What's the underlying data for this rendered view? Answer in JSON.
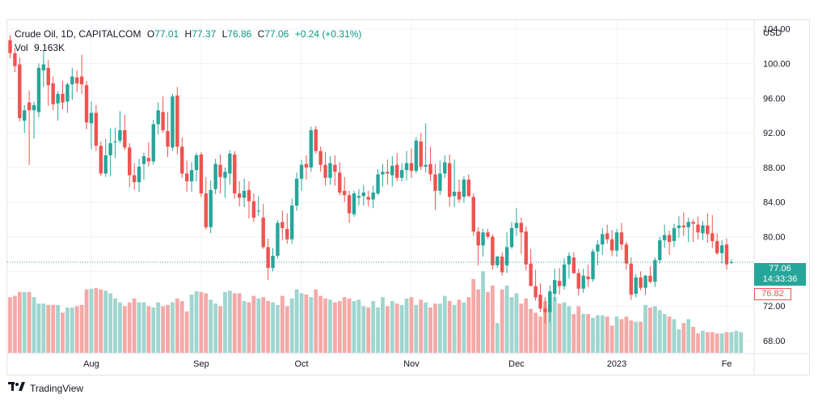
{
  "legend": {
    "symbol": "Crude Oil, 1D, CAPITALCOM",
    "open_label": "O",
    "open": "77.01",
    "high_label": "H",
    "high": "77.37",
    "low_label": "L",
    "low": "76.86",
    "close_label": "C",
    "close": "77.06",
    "change": "+0.24 (+0.31%)",
    "vol_label": "Vol",
    "vol_value": "9.163K"
  },
  "price_axis": {
    "currency": "USD"
  },
  "badges": {
    "last_price": "77.06",
    "countdown": "14:33:36",
    "low_price": "76.82"
  },
  "footer": {
    "brand": "TradingView"
  },
  "colors": {
    "up": "#26a69a",
    "down": "#ef5350",
    "vol_up": "#9fd6cf",
    "vol_down": "#f4a9a7",
    "grid": "#f0f3fa",
    "last_line": "#26a69a"
  },
  "chart_data": {
    "type": "candlestick",
    "title": "Crude Oil, 1D, CAPITALCOM",
    "ylabel": "USD",
    "ylim": [
      66.5,
      105
    ],
    "y_ticks": [
      "104.00",
      "100.00",
      "96.00",
      "92.00",
      "88.00",
      "84.00",
      "80.00",
      "76.00",
      "72.00",
      "68.00"
    ],
    "y_tick_values": [
      104,
      100,
      96,
      92,
      88,
      84,
      80,
      76,
      72,
      68
    ],
    "x_ticks": [
      {
        "label": "Aug",
        "index": 17
      },
      {
        "label": "Sep",
        "index": 40
      },
      {
        "label": "Oct",
        "index": 61
      },
      {
        "label": "Nov",
        "index": 84
      },
      {
        "label": "Dec",
        "index": 106
      },
      {
        "label": "2023",
        "index": 127
      },
      {
        "label": "Fe",
        "index": 150
      }
    ],
    "ohlc": [
      [
        102.7,
        103.3,
        100.6,
        101.2
      ],
      [
        101.2,
        101.8,
        99.0,
        99.7
      ],
      [
        99.9,
        100.7,
        93.3,
        93.7
      ],
      [
        93.4,
        95.2,
        92.0,
        94.6
      ],
      [
        95.5,
        96.9,
        88.3,
        94.6
      ],
      [
        94.6,
        95.6,
        91.3,
        95.2
      ],
      [
        94.4,
        100.0,
        93.8,
        99.5
      ],
      [
        99.2,
        101.5,
        97.3,
        99.9
      ],
      [
        99.5,
        100.4,
        95.1,
        97.5
      ],
      [
        97.7,
        98.5,
        94.6,
        95.3
      ],
      [
        95.4,
        96.8,
        93.4,
        96.5
      ],
      [
        96.5,
        98.0,
        94.7,
        95.5
      ],
      [
        95.6,
        97.8,
        94.3,
        97.6
      ],
      [
        97.6,
        99.5,
        95.8,
        98.5
      ],
      [
        98.4,
        99.2,
        96.7,
        97.7
      ],
      [
        98.5,
        101.0,
        96.5,
        97.6
      ],
      [
        97.5,
        98.0,
        92.4,
        93.2
      ],
      [
        93.1,
        95.6,
        90.1,
        94.3
      ],
      [
        94.3,
        95.2,
        89.9,
        90.5
      ],
      [
        90.5,
        91.0,
        87.0,
        87.3
      ],
      [
        87.3,
        91.3,
        86.9,
        89.4
      ],
      [
        89.4,
        92.5,
        87.0,
        90.8
      ],
      [
        90.9,
        92.6,
        89.1,
        91.0
      ],
      [
        91.1,
        94.5,
        90.8,
        92.3
      ],
      [
        92.3,
        94.1,
        90.0,
        90.3
      ],
      [
        90.3,
        90.8,
        85.7,
        87.1
      ],
      [
        87.1,
        88.5,
        85.4,
        86.3
      ],
      [
        86.3,
        89.0,
        85.2,
        88.1
      ],
      [
        88.4,
        89.7,
        86.6,
        89.3
      ],
      [
        89.1,
        90.9,
        88.1,
        88.7
      ],
      [
        88.7,
        93.5,
        88.3,
        93.0
      ],
      [
        93.0,
        95.5,
        91.8,
        94.6
      ],
      [
        94.4,
        96.2,
        92.0,
        92.3
      ],
      [
        92.2,
        94.4,
        89.2,
        90.4
      ],
      [
        90.3,
        96.5,
        89.9,
        96.2
      ],
      [
        96.3,
        97.3,
        89.5,
        90.4
      ],
      [
        90.4,
        91.5,
        86.8,
        87.3
      ],
      [
        87.3,
        88.8,
        85.2,
        86.4
      ],
      [
        86.4,
        88.6,
        85.2,
        87.7
      ],
      [
        87.7,
        89.7,
        86.4,
        89.4
      ],
      [
        89.5,
        89.8,
        84.6,
        85.0
      ],
      [
        85.0,
        86.9,
        80.8,
        81.1
      ],
      [
        81.1,
        86.5,
        80.4,
        85.4
      ],
      [
        85.5,
        89.0,
        84.9,
        88.4
      ],
      [
        88.3,
        89.5,
        85.0,
        86.9
      ],
      [
        86.8,
        88.0,
        84.5,
        87.5
      ],
      [
        87.3,
        90.0,
        86.0,
        89.6
      ],
      [
        89.5,
        89.9,
        84.4,
        85.0
      ],
      [
        85.0,
        86.4,
        83.5,
        84.5
      ],
      [
        84.5,
        86.7,
        83.4,
        85.3
      ],
      [
        85.4,
        86.4,
        82.1,
        84.1
      ],
      [
        84.1,
        85.0,
        81.7,
        82.2
      ],
      [
        83.0,
        84.7,
        82.4,
        83.0
      ],
      [
        82.2,
        83.8,
        78.6,
        78.8
      ],
      [
        78.8,
        79.8,
        75.0,
        76.4
      ],
      [
        76.4,
        78.7,
        76.0,
        77.8
      ],
      [
        77.8,
        81.9,
        77.5,
        81.6
      ],
      [
        81.7,
        83.0,
        79.6,
        81.0
      ],
      [
        80.9,
        82.7,
        79.2,
        79.7
      ],
      [
        79.7,
        84.4,
        79.2,
        83.6
      ],
      [
        83.6,
        87.4,
        83.0,
        86.7
      ],
      [
        86.7,
        88.9,
        85.3,
        88.3
      ],
      [
        88.4,
        89.4,
        86.6,
        88.0
      ],
      [
        88.0,
        92.7,
        87.5,
        92.3
      ],
      [
        92.4,
        92.8,
        89.6,
        89.9
      ],
      [
        89.9,
        90.4,
        87.5,
        88.3
      ],
      [
        88.3,
        89.8,
        85.9,
        86.8
      ],
      [
        86.8,
        89.3,
        86.0,
        88.5
      ],
      [
        88.3,
        89.4,
        85.9,
        87.5
      ],
      [
        87.4,
        88.6,
        84.8,
        85.1
      ],
      [
        85.3,
        86.9,
        84.0,
        84.8
      ],
      [
        84.8,
        85.3,
        81.6,
        82.7
      ],
      [
        82.6,
        85.3,
        82.3,
        85.0
      ],
      [
        84.5,
        85.5,
        83.6,
        84.7
      ],
      [
        84.7,
        86.0,
        83.6,
        85.1
      ],
      [
        84.6,
        85.3,
        83.5,
        84.3
      ],
      [
        84.3,
        85.9,
        83.3,
        85.1
      ],
      [
        85.0,
        87.8,
        84.8,
        87.2
      ],
      [
        87.2,
        88.4,
        85.8,
        87.5
      ],
      [
        87.5,
        88.9,
        86.0,
        87.3
      ],
      [
        87.1,
        89.3,
        85.8,
        88.2
      ],
      [
        88.3,
        89.7,
        86.4,
        86.8
      ],
      [
        86.8,
        88.5,
        86.4,
        87.7
      ],
      [
        87.7,
        89.9,
        86.5,
        88.5
      ],
      [
        88.5,
        90.2,
        86.8,
        87.6
      ],
      [
        87.6,
        91.5,
        87.3,
        91.1
      ],
      [
        91.0,
        92.0,
        87.7,
        88.1
      ],
      [
        88.1,
        93.1,
        87.4,
        88.3
      ],
      [
        88.4,
        90.4,
        86.4,
        87.2
      ],
      [
        87.2,
        88.4,
        83.1,
        85.3
      ],
      [
        85.3,
        88.8,
        84.8,
        87.3
      ],
      [
        87.3,
        89.4,
        86.8,
        88.6
      ],
      [
        88.5,
        89.5,
        83.5,
        84.6
      ],
      [
        84.7,
        88.9,
        83.4,
        85.2
      ],
      [
        85.2,
        86.6,
        83.9,
        84.3
      ],
      [
        84.6,
        87.0,
        83.9,
        86.6
      ],
      [
        86.6,
        87.2,
        84.6,
        84.7
      ],
      [
        84.6,
        85.0,
        80.1,
        80.6
      ],
      [
        80.6,
        81.1,
        76.7,
        79.0
      ],
      [
        79.0,
        80.9,
        77.7,
        80.5
      ],
      [
        80.5,
        80.9,
        79.8,
        80.0
      ],
      [
        80.0,
        80.3,
        76.2,
        76.7
      ],
      [
        76.7,
        77.8,
        76.4,
        77.7
      ],
      [
        77.7,
        78.2,
        75.5,
        75.9
      ],
      [
        76.7,
        80.5,
        75.8,
        78.8
      ],
      [
        78.8,
        81.7,
        78.6,
        81.0
      ],
      [
        81.0,
        83.3,
        80.1,
        81.6
      ],
      [
        81.6,
        82.2,
        78.0,
        80.5
      ],
      [
        80.6,
        81.2,
        76.1,
        76.8
      ],
      [
        76.9,
        78.6,
        74.3,
        74.3
      ],
      [
        74.3,
        76.2,
        72.6,
        73.0
      ],
      [
        73.3,
        74.6,
        71.3,
        71.7
      ],
      [
        71.7,
        73.0,
        70.0,
        71.3
      ],
      [
        71.3,
        74.4,
        70.1,
        73.7
      ],
      [
        73.4,
        76.3,
        72.6,
        75.0
      ],
      [
        74.9,
        76.4,
        73.3,
        74.3
      ],
      [
        74.3,
        77.5,
        73.9,
        76.8
      ],
      [
        76.8,
        78.2,
        75.2,
        77.8
      ],
      [
        77.6,
        78.2,
        75.7,
        75.8
      ],
      [
        75.8,
        76.3,
        73.2,
        74.0
      ],
      [
        74.0,
        76.3,
        73.5,
        75.5
      ],
      [
        75.4,
        76.8,
        74.2,
        75.1
      ],
      [
        75.1,
        78.6,
        74.8,
        78.3
      ],
      [
        78.3,
        79.6,
        76.7,
        79.1
      ],
      [
        79.1,
        81.0,
        77.9,
        80.3
      ],
      [
        80.4,
        81.4,
        79.2,
        79.7
      ],
      [
        79.7,
        80.8,
        77.8,
        78.4
      ],
      [
        78.4,
        80.9,
        77.7,
        80.5
      ],
      [
        80.5,
        81.6,
        78.5,
        79.1
      ],
      [
        79.1,
        79.4,
        76.2,
        76.9
      ],
      [
        76.9,
        77.6,
        72.7,
        73.3
      ],
      [
        73.4,
        75.7,
        73.0,
        75.3
      ],
      [
        75.3,
        76.0,
        73.8,
        74.1
      ],
      [
        74.1,
        75.6,
        73.3,
        75.5
      ],
      [
        75.5,
        76.6,
        74.6,
        74.8
      ],
      [
        74.8,
        77.6,
        74.2,
        77.3
      ],
      [
        77.3,
        80.0,
        76.9,
        79.6
      ],
      [
        79.6,
        81.4,
        78.7,
        80.2
      ],
      [
        80.2,
        80.7,
        77.9,
        79.4
      ],
      [
        79.5,
        81.5,
        78.8,
        81.0
      ],
      [
        81.0,
        82.4,
        79.9,
        81.3
      ],
      [
        81.3,
        82.8,
        80.1,
        81.1
      ],
      [
        81.1,
        82.2,
        79.4,
        81.7
      ],
      [
        81.7,
        82.0,
        79.4,
        81.5
      ],
      [
        81.4,
        82.3,
        79.7,
        80.5
      ],
      [
        80.4,
        81.8,
        79.6,
        81.3
      ],
      [
        81.3,
        82.7,
        79.3,
        80.3
      ],
      [
        80.4,
        82.5,
        78.7,
        79.5
      ],
      [
        79.5,
        80.4,
        77.9,
        78.1
      ],
      [
        78.1,
        79.6,
        76.9,
        79.0
      ],
      [
        79.1,
        79.8,
        76.2,
        76.8
      ],
      [
        77.01,
        77.37,
        76.86,
        77.06
      ]
    ],
    "volume_heights": [
      0.86,
      0.88,
      0.94,
      0.94,
      0.94,
      0.86,
      0.76,
      0.76,
      0.74,
      0.74,
      0.74,
      0.62,
      0.7,
      0.7,
      0.72,
      0.74,
      0.98,
      0.99,
      1.0,
      0.98,
      0.96,
      0.92,
      0.84,
      0.78,
      0.72,
      0.78,
      0.84,
      0.78,
      0.78,
      0.72,
      0.7,
      0.78,
      0.72,
      0.74,
      0.78,
      0.84,
      0.8,
      0.64,
      0.9,
      0.95,
      0.94,
      0.92,
      0.82,
      0.76,
      0.72,
      0.94,
      0.96,
      0.92,
      0.92,
      0.8,
      0.78,
      0.88,
      0.84,
      0.86,
      0.8,
      0.78,
      0.74,
      0.88,
      0.72,
      0.84,
      0.98,
      0.92,
      0.9,
      0.86,
      0.98,
      0.88,
      0.84,
      0.82,
      0.78,
      0.8,
      0.86,
      0.84,
      0.8,
      0.82,
      0.72,
      0.7,
      0.8,
      0.7,
      0.86,
      0.72,
      0.8,
      0.76,
      0.74,
      0.84,
      0.86,
      0.74,
      0.82,
      0.78,
      0.7,
      0.76,
      0.76,
      0.88,
      0.8,
      0.74,
      0.82,
      0.78,
      0.86,
      1.14,
      0.98,
      1.26,
      0.94,
      1.04,
      0.46,
      0.98,
      1.04,
      0.86,
      0.92,
      0.76,
      0.84,
      0.68,
      0.62,
      0.56,
      0.8,
      0.74,
      0.86,
      0.76,
      0.78,
      0.72,
      0.6,
      0.72,
      0.6,
      0.6,
      0.54,
      0.58,
      0.58,
      0.56,
      0.42,
      0.56,
      0.52,
      0.56,
      0.5,
      0.48,
      0.48,
      0.74,
      0.7,
      0.72,
      0.66,
      0.6,
      0.56,
      0.52,
      0.36,
      0.46,
      0.52,
      0.4,
      0.3,
      0.34,
      0.32,
      0.32,
      0.3,
      0.3,
      0.32,
      0.32,
      0.34,
      0.32
    ]
  }
}
